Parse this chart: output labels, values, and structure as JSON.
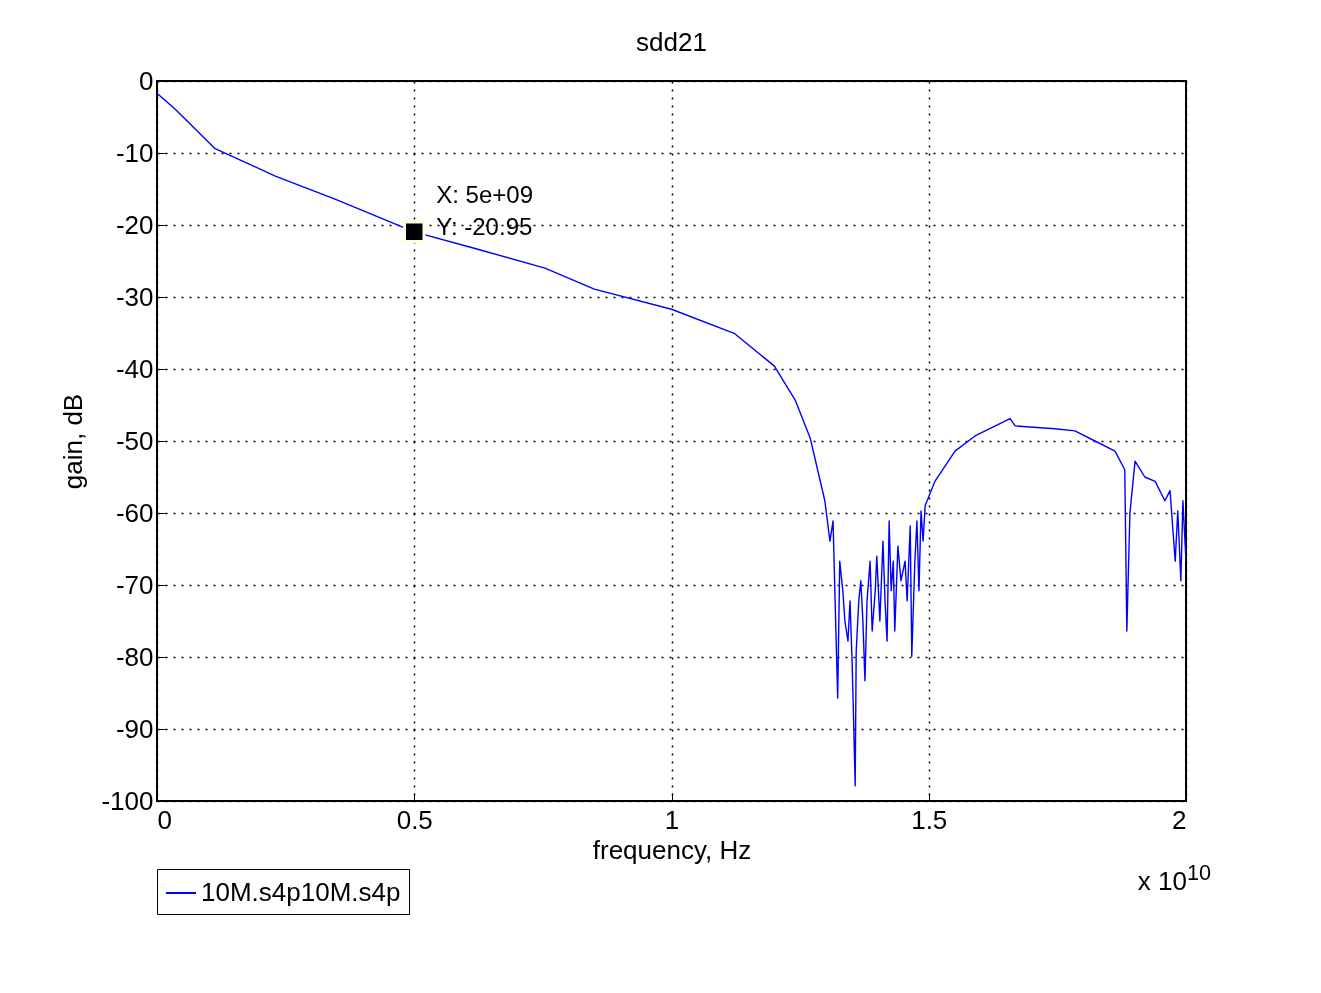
{
  "chart_data": {
    "type": "line",
    "title": "sdd21",
    "xlabel": "frequency, Hz",
    "ylabel": "gain, dB",
    "xlim": [
      0,
      2
    ],
    "xticks": [
      0,
      0.5,
      1,
      1.5,
      2
    ],
    "ylim": [
      -100,
      0
    ],
    "yticks": [
      -100,
      -90,
      -80,
      -70,
      -60,
      -50,
      -40,
      -30,
      -20,
      -10,
      0
    ],
    "grid": true,
    "legend": "bottom",
    "line_style": "solid",
    "annotations": [
      {
        "text": "X: 5e+09\nY: -20.95",
        "x": 0.5,
        "y": -20.95
      },
      "x 10$^{10}$"
    ],
    "series": [
      {
        "name": "10M.s4p10M.s4p",
        "color": "#0000ff",
        "x": [
          0,
          0.035,
          0.113,
          0.23,
          0.346,
          0.5,
          0.62,
          0.754,
          0.85,
          1.0,
          1.123,
          1.2,
          1.241,
          1.27,
          1.298,
          1.308,
          1.314,
          1.318,
          1.323,
          1.327,
          1.333,
          1.337,
          1.343,
          1.347,
          1.351,
          1.353,
          1.357,
          1.359,
          1.364,
          1.368,
          1.372,
          1.376,
          1.38,
          1.386,
          1.39,
          1.396,
          1.399,
          1.405,
          1.411,
          1.415,
          1.419,
          1.423,
          1.427,
          1.431,
          1.434,
          1.44,
          1.446,
          1.454,
          1.458,
          1.464,
          1.467,
          1.473,
          1.477,
          1.481,
          1.485,
          1.489,
          1.493,
          1.512,
          1.551,
          1.59,
          1.658,
          1.668,
          1.745,
          1.784,
          1.823,
          1.862,
          1.881,
          1.885,
          1.891,
          1.901,
          1.92,
          1.94,
          1.959,
          1.969,
          1.979,
          1.984,
          1.99,
          1.994,
          2.0
        ],
        "values": [
          -1.7,
          -3.9,
          -9.4,
          -13.2,
          -16.4,
          -20.95,
          -23.3,
          -26.0,
          -28.9,
          -31.7,
          -35.1,
          -39.6,
          -44.4,
          -49.7,
          -58.3,
          -63.9,
          -61.1,
          -72.2,
          -85.7,
          -66.7,
          -70.8,
          -75.0,
          -77.8,
          -72.2,
          -80.6,
          -86.1,
          -97.9,
          -79.2,
          -72.2,
          -69.4,
          -75.0,
          -83.3,
          -72.2,
          -66.7,
          -76.4,
          -70.8,
          -66.0,
          -75.0,
          -63.9,
          -72.2,
          -77.8,
          -61.1,
          -70.8,
          -66.7,
          -76.4,
          -64.6,
          -69.4,
          -66.7,
          -72.2,
          -61.8,
          -79.9,
          -66.7,
          -61.1,
          -70.8,
          -59.7,
          -63.9,
          -59.0,
          -55.6,
          -51.4,
          -49.3,
          -46.9,
          -47.9,
          -48.3,
          -48.6,
          -50.0,
          -51.4,
          -54.0,
          -76.4,
          -60.0,
          -52.8,
          -55.0,
          -55.6,
          -58.3,
          -56.9,
          -66.7,
          -59.7,
          -69.4,
          -58.3,
          -66.7
        ]
      }
    ]
  }
}
